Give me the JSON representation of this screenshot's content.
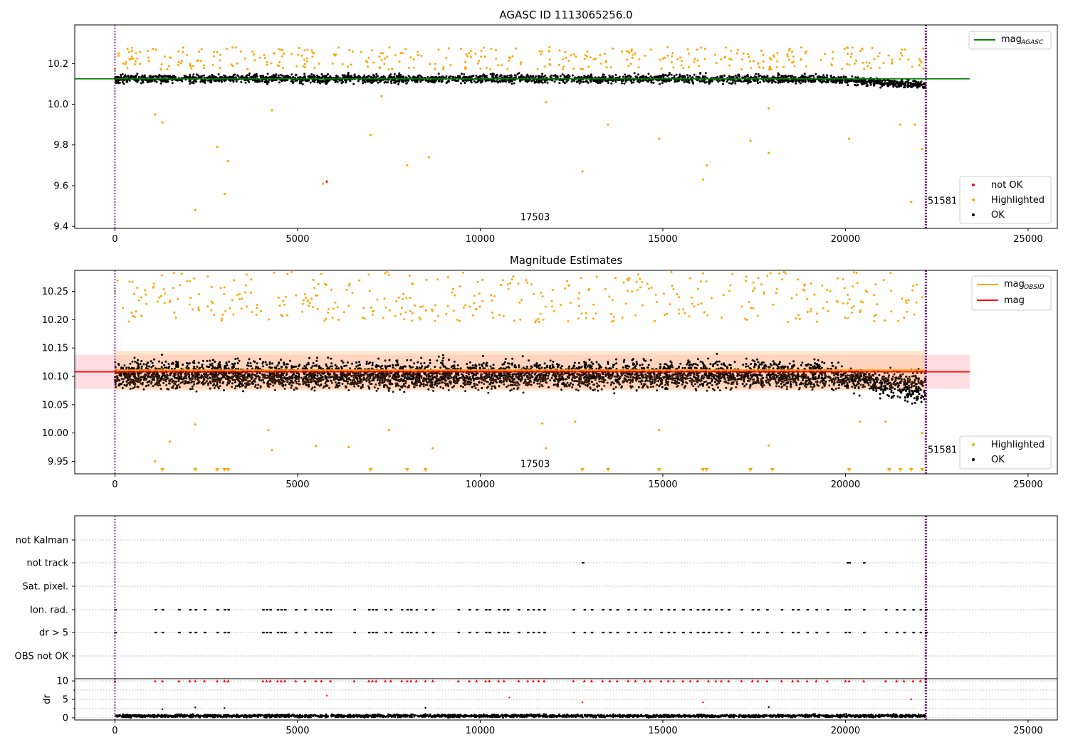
{
  "chart_data": [
    {
      "type": "scatter",
      "title": "AGASC ID 1113065256.0",
      "xlabel": "",
      "ylabel": "",
      "xlim": [
        -1100,
        25800
      ],
      "ylim": [
        9.39,
        10.39
      ],
      "xticks": [
        0,
        5000,
        10000,
        15000,
        20000,
        25000
      ],
      "yticks": [
        9.4,
        9.6,
        9.8,
        10.0,
        10.2
      ],
      "ytick_labels": [
        "9.4",
        "9.6",
        "9.8",
        "10.0",
        "10.2"
      ],
      "vlines": [
        {
          "x": 0,
          "color": "#800080"
        },
        {
          "x": 22200,
          "color": "#800080"
        }
      ],
      "hlines": [
        {
          "y": 10.125,
          "x_range": [
            -1100,
            23400
          ],
          "color": "#008000",
          "name": "mag_AGASC"
        }
      ],
      "annotations": [
        {
          "x": 11100,
          "y": 9.43,
          "text": "17503"
        },
        {
          "x": 22250,
          "y": 9.51,
          "text": "51581"
        }
      ],
      "legend_lines": {
        "position": "top-right",
        "entries": [
          {
            "label": "mag",
            "sub": "AGASC",
            "color": "#008000"
          }
        ]
      },
      "legend_points": {
        "position": "lower-right",
        "entries": [
          {
            "label": "not OK",
            "color": "#ff0000"
          },
          {
            "label": "Highlighted",
            "color": "#ffa500"
          },
          {
            "label": "OK",
            "color": "#000000"
          }
        ]
      },
      "series": [
        {
          "name": "OK",
          "color": "#000000",
          "band": {
            "center": 10.125,
            "spread": 0.04,
            "x_range": [
              0,
              22200
            ]
          }
        },
        {
          "name": "Highlighted",
          "color": "#ffa500",
          "points": [
            [
              100,
              10.25
            ],
            [
              1100,
              9.95
            ],
            [
              1300,
              9.91
            ],
            [
              2200,
              9.48
            ],
            [
              2800,
              9.79
            ],
            [
              3000,
              9.56
            ],
            [
              3100,
              9.72
            ],
            [
              4300,
              9.97
            ],
            [
              5700,
              9.61
            ],
            [
              7000,
              9.85
            ],
            [
              7300,
              10.04
            ],
            [
              8000,
              9.7
            ],
            [
              8600,
              9.74
            ],
            [
              11800,
              10.01
            ],
            [
              12800,
              9.67
            ],
            [
              13500,
              9.9
            ],
            [
              14900,
              9.83
            ],
            [
              16100,
              9.63
            ],
            [
              16200,
              9.7
            ],
            [
              17400,
              9.82
            ],
            [
              17900,
              9.76
            ],
            [
              17900,
              9.98
            ],
            [
              20100,
              9.83
            ],
            [
              21500,
              9.9
            ],
            [
              21800,
              9.52
            ],
            [
              21900,
              9.9
            ],
            [
              22100,
              9.78
            ]
          ]
        },
        {
          "name": "not OK",
          "color": "#ff0000",
          "points": [
            [
              5800,
              9.62
            ]
          ]
        }
      ]
    },
    {
      "type": "scatter",
      "title": "Magnitude Estimates",
      "xlabel": "",
      "ylabel": "",
      "xlim": [
        -1100,
        25800
      ],
      "ylim": [
        9.928,
        10.287
      ],
      "xticks": [
        0,
        5000,
        10000,
        15000,
        20000,
        25000
      ],
      "yticks": [
        9.95,
        10.0,
        10.05,
        10.1,
        10.15,
        10.2,
        10.25
      ],
      "ytick_labels": [
        "9.95",
        "10.00",
        "10.05",
        "10.10",
        "10.15",
        "10.20",
        "10.25"
      ],
      "vlines": [
        {
          "x": 0,
          "color": "#800080"
        },
        {
          "x": 22200,
          "color": "#800080"
        }
      ],
      "hlines": [
        {
          "y": 10.108,
          "x_range": [
            -1100,
            23400
          ],
          "color": "#ff0000",
          "name": "mag",
          "band": [
            10.078,
            10.138
          ]
        },
        {
          "y": 10.111,
          "x_range": [
            0,
            22200
          ],
          "color": "#ffa500",
          "name": "mag_OBSID",
          "band": [
            10.075,
            10.145
          ]
        }
      ],
      "annotations": [
        {
          "x": 11100,
          "y": 9.94,
          "text": "17503"
        },
        {
          "x": 22250,
          "y": 9.965,
          "text": "51581"
        }
      ],
      "legend_lines": {
        "position": "top-right",
        "entries": [
          {
            "label": "mag",
            "sub": "OBSID",
            "color": "#ffa500"
          },
          {
            "label": "mag",
            "sub": "",
            "color": "#ff0000"
          }
        ]
      },
      "legend_points": {
        "position": "lower-right",
        "entries": [
          {
            "label": "Highlighted",
            "color": "#ffa500"
          },
          {
            "label": "OK",
            "color": "#000000"
          }
        ]
      },
      "series": [
        {
          "name": "OK",
          "color": "#000000",
          "band": {
            "center": 10.105,
            "spread": 0.045,
            "x_range": [
              0,
              22200
            ]
          }
        },
        {
          "name": "Highlighted",
          "color": "#ffa500",
          "points": [
            [
              1100,
              9.95
            ],
            [
              1500,
              9.985
            ],
            [
              2200,
              10.015
            ],
            [
              4200,
              10.005
            ],
            [
              4300,
              9.97
            ],
            [
              5500,
              9.977
            ],
            [
              6400,
              9.975
            ],
            [
              7500,
              10.005
            ],
            [
              8700,
              9.973
            ],
            [
              11700,
              10.017
            ],
            [
              11800,
              9.973
            ],
            [
              12600,
              10.02
            ],
            [
              14900,
              10.005
            ],
            [
              17900,
              9.978
            ],
            [
              20400,
              10.02
            ],
            [
              21100,
              10.02
            ],
            [
              22100,
              10.0
            ]
          ]
        }
      ],
      "clipped_markers": {
        "color": "#ffa500",
        "x": [
          1300,
          2200,
          2800,
          3000,
          3100,
          7000,
          8000,
          8500,
          12800,
          13500,
          14900,
          16100,
          16200,
          17400,
          18000,
          20100,
          21200,
          21500,
          21800,
          22100
        ]
      }
    },
    {
      "type": "scatter",
      "title": "",
      "xlabel": "",
      "ylabel": "",
      "xlim": [
        -1100,
        25800
      ],
      "xticks": [
        0,
        5000,
        10000,
        15000,
        20000,
        25000
      ],
      "categories": [
        "not Kalman",
        "not track",
        "Sat. pixel.",
        "Ion. rad.",
        "dr > 5",
        "OBS not OK"
      ],
      "vlines": [
        {
          "x": 0,
          "color": "#800080"
        },
        {
          "x": 22200,
          "color": "#800080"
        }
      ],
      "flags": [
        {
          "name": "not Kalman",
          "x": []
        },
        {
          "name": "not track",
          "x": [
            12800,
            20050,
            20100,
            20500
          ]
        },
        {
          "name": "Sat. pixel.",
          "x": []
        },
        {
          "name": "Ion. rad.",
          "x": [
            0,
            1100,
            1300,
            1750,
            2050,
            2200,
            2450,
            2800,
            3000,
            3100,
            4050,
            4150,
            4250,
            4450,
            4550,
            4650,
            4950,
            5200,
            5500,
            5650,
            5800,
            5900,
            6550,
            6950,
            7050,
            7150,
            7400,
            7550,
            7850,
            8000,
            8100,
            8250,
            8500,
            8700,
            9400,
            9700,
            9900,
            10150,
            10250,
            10500,
            10650,
            10750,
            11050,
            11300,
            11450,
            11600,
            11750,
            12550,
            12850,
            13050,
            13350,
            13550,
            13750,
            14050,
            14250,
            14500,
            14650,
            14950,
            15150,
            15300,
            15550,
            15750,
            15950,
            16100,
            16250,
            16450,
            16600,
            16800,
            17150,
            17450,
            17600,
            17850,
            18250,
            18550,
            18700,
            18950,
            19200,
            19500,
            20000,
            20100,
            20500,
            21100,
            21400,
            21600,
            21850,
            22050,
            22200
          ]
        },
        {
          "name": "dr > 5",
          "x": [
            0,
            1100,
            1300,
            1750,
            2050,
            2200,
            2450,
            2800,
            3000,
            3100,
            4050,
            4150,
            4250,
            4450,
            4550,
            4650,
            4950,
            5200,
            5500,
            5650,
            5800,
            5900,
            6550,
            6950,
            7050,
            7150,
            7400,
            7550,
            7850,
            8000,
            8100,
            8250,
            8500,
            8700,
            9400,
            9700,
            9900,
            10150,
            10250,
            10500,
            10650,
            10750,
            11050,
            11300,
            11450,
            11600,
            11750,
            12550,
            12850,
            13050,
            13350,
            13550,
            13750,
            14050,
            14250,
            14500,
            14650,
            14950,
            15150,
            15300,
            15550,
            15750,
            15950,
            16100,
            16250,
            16450,
            16600,
            16800,
            17150,
            17450,
            17600,
            17850,
            18250,
            18550,
            18700,
            18950,
            19200,
            19500,
            20000,
            20100,
            20500,
            21100,
            21400,
            21600,
            21850,
            22050,
            22200
          ]
        },
        {
          "name": "OBS not OK",
          "x": []
        }
      ]
    },
    {
      "type": "scatter",
      "title": "",
      "xlabel": "",
      "ylabel": "dr",
      "xlim": [
        -1100,
        25800
      ],
      "ylim": [
        -0.6,
        10.6
      ],
      "xticks": [
        0,
        5000,
        10000,
        15000,
        20000,
        25000
      ],
      "yticks": [
        0,
        5,
        10
      ],
      "ytick_labels": [
        "0",
        "5",
        "10"
      ],
      "vlines": [
        {
          "x": 0,
          "color": "#800080"
        },
        {
          "x": 22200,
          "color": "#800080"
        }
      ],
      "series": [
        {
          "name": "dr",
          "color": "#000000",
          "band": {
            "center": 0.5,
            "spread": 0.45,
            "x_range": [
              0,
              22200
            ]
          }
        },
        {
          "name": "dr > 5",
          "color": "#ff0000",
          "clipped_at": 10,
          "x": [
            0,
            1100,
            1300,
            1750,
            2050,
            2200,
            2450,
            2800,
            3000,
            3100,
            4050,
            4150,
            4250,
            4450,
            4550,
            4650,
            4950,
            5200,
            5500,
            5650,
            5900,
            6550,
            6950,
            7050,
            7150,
            7400,
            7550,
            7850,
            8000,
            8100,
            8250,
            8500,
            8700,
            9400,
            9700,
            9900,
            10150,
            10250,
            10500,
            10650,
            11050,
            11300,
            11450,
            11600,
            11750,
            12550,
            12850,
            13050,
            13350,
            13550,
            13750,
            14050,
            14250,
            14500,
            14650,
            14950,
            15150,
            15300,
            15550,
            15750,
            15950,
            16250,
            16450,
            16600,
            16800,
            17150,
            17450,
            17600,
            17850,
            18250,
            18550,
            18700,
            18950,
            19200,
            19500,
            20000,
            20100,
            20500,
            21100,
            21400,
            21600,
            21850,
            22050,
            22200
          ]
        },
        {
          "name": "dr outliers",
          "color": "#ff0000",
          "points": [
            [
              5800,
              6.0
            ],
            [
              10800,
              5.5
            ],
            [
              12800,
              4.2
            ],
            [
              16100,
              4.2
            ],
            [
              21800,
              5.0
            ]
          ]
        },
        {
          "name": "dr small outliers",
          "color": "#000000",
          "points": [
            [
              1300,
              2.3
            ],
            [
              2200,
              2.8
            ],
            [
              3000,
              2.6
            ],
            [
              8500,
              2.7
            ],
            [
              17900,
              2.9
            ]
          ]
        }
      ]
    }
  ]
}
